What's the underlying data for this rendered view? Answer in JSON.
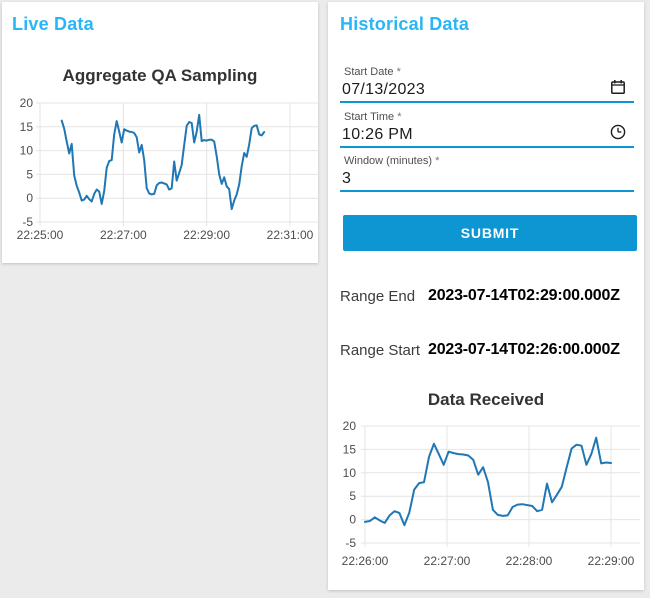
{
  "app": {
    "background_color": "#ebebeb",
    "card_color": "#ffffff",
    "primary_color": "#0d96d2",
    "heading_color": "#29b6f6"
  },
  "live_panel": {
    "heading": "Live Data"
  },
  "historical_panel": {
    "heading": "Historical Data",
    "fields": [
      {
        "label": "Start Date",
        "required_marker": "*",
        "value": "07/13/2023",
        "icon": "calendar-icon"
      },
      {
        "label": "Start Time",
        "required_marker": "*",
        "value": "10:26 PM",
        "icon": "clock-icon"
      },
      {
        "label": "Window (minutes)",
        "required_marker": "*",
        "value": "3",
        "icon": null
      }
    ],
    "submit_label": "SUBMIT",
    "range_end": {
      "label": "Range End",
      "value": "2023-07-14T02:29:00.000Z"
    },
    "range_start": {
      "label": "Range Start",
      "value": "2023-07-14T02:26:00.000Z"
    }
  },
  "chart_data": [
    {
      "id": "live",
      "type": "line",
      "title": "Aggregate QA Sampling",
      "line_color": "#1f77b4",
      "grid": true,
      "x_axis": {
        "tick_labels": [
          "22:25:00",
          "22:27:00",
          "22:29:00",
          "22:31:00"
        ],
        "tick_seconds": [
          80700,
          80820,
          80940,
          81060
        ]
      },
      "y_axis": {
        "ticks": [
          -5,
          0,
          5,
          10,
          15,
          20
        ],
        "min": -5,
        "max": 20
      },
      "series": {
        "t0_seconds": 80731.2,
        "dt_seconds": 3.6,
        "values": [
          16.3,
          14.6,
          11.9,
          9.4,
          11.4,
          4.8,
          2.6,
          1.2,
          -0.5,
          -0.3,
          0.5,
          -0.2,
          -0.7,
          0.9,
          1.8,
          1.4,
          -1.2,
          1.5,
          6.4,
          7.8,
          8.0,
          13.4,
          16.2,
          14.0,
          11.7,
          14.5,
          14.2,
          14.0,
          13.9,
          13.7,
          12.8,
          9.6,
          11.2,
          8.0,
          2.1,
          1.0,
          0.8,
          0.9,
          2.7,
          3.2,
          3.3,
          3.1,
          2.9,
          1.8,
          2.1,
          7.7,
          3.7,
          5.3,
          7.0,
          11.2,
          15.2,
          16.0,
          15.8,
          11.7,
          14.0,
          17.5,
          12.0,
          12.2,
          12.1,
          12.3,
          12.3,
          11.9,
          8.8,
          5.0,
          3.0,
          4.4,
          2.5,
          1.9,
          -2.3,
          -0.5,
          0.8,
          2.9,
          6.7,
          9.5,
          8.7,
          11.3,
          14.7,
          15.2,
          15.3,
          13.4,
          13.2,
          13.9
        ]
      }
    },
    {
      "id": "received",
      "type": "line",
      "title": "Data Received",
      "line_color": "#1f77b4",
      "grid": true,
      "x_axis": {
        "tick_labels": [
          "22:26:00",
          "22:27:00",
          "22:28:00",
          "22:29:00"
        ],
        "tick_seconds": [
          80760,
          80820,
          80880,
          80940
        ]
      },
      "y_axis": {
        "ticks": [
          -5,
          0,
          5,
          10,
          15,
          20
        ],
        "min": -5,
        "max": 20
      },
      "series": {
        "t0_seconds": 80760,
        "dt_seconds": 3.6,
        "values": [
          -0.5,
          -0.3,
          0.5,
          -0.2,
          -0.7,
          0.9,
          1.8,
          1.4,
          -1.2,
          1.5,
          6.4,
          7.8,
          8.0,
          13.4,
          16.2,
          14.0,
          11.7,
          14.5,
          14.2,
          14.0,
          13.9,
          13.7,
          12.8,
          9.6,
          11.2,
          8.0,
          2.1,
          1.0,
          0.8,
          0.9,
          2.7,
          3.2,
          3.3,
          3.1,
          2.9,
          1.8,
          2.1,
          7.7,
          3.7,
          5.3,
          7.0,
          11.2,
          15.2,
          16.0,
          15.8,
          11.7,
          14.0,
          17.5,
          12.0,
          12.2,
          12.1
        ]
      }
    }
  ]
}
